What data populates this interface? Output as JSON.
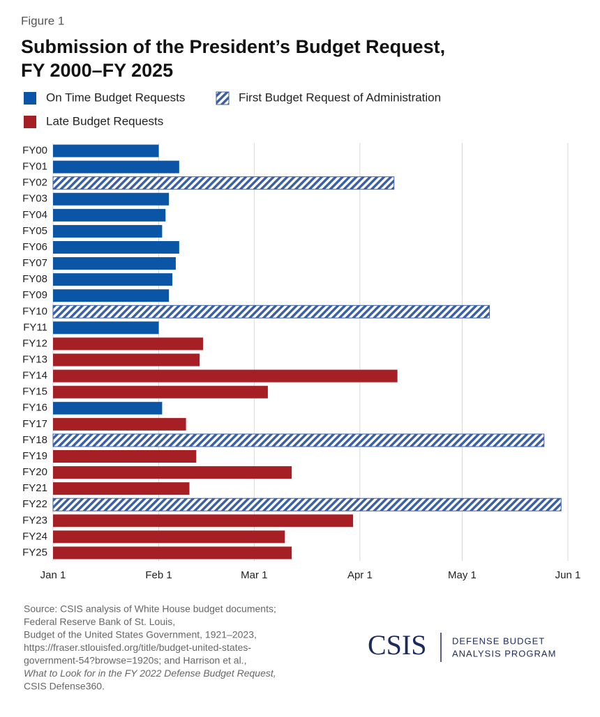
{
  "figure_label": "Figure 1",
  "chart_data": {
    "type": "hbar",
    "title": [
      "Submission of the President’s Budget Request,",
      "FY 2000–FY 2025"
    ],
    "categories": [
      "FY00",
      "FY01",
      "FY02",
      "FY03",
      "FY04",
      "FY05",
      "FY06",
      "FY07",
      "FY08",
      "FY09",
      "FY10",
      "FY11",
      "FY12",
      "FY13",
      "FY14",
      "FY15",
      "FY16",
      "FY17",
      "FY18",
      "FY19",
      "FY20",
      "FY21",
      "FY22",
      "FY23",
      "FY24",
      "FY25"
    ],
    "series": [
      {
        "name": "On Time Budget Requests",
        "color": "#0b55a6",
        "pattern": "solid",
        "values": [
          31,
          37,
          null,
          34,
          33,
          32,
          37,
          36,
          35,
          34,
          null,
          31,
          null,
          null,
          null,
          null,
          32,
          null,
          null,
          null,
          null,
          null,
          null,
          null,
          null,
          null
        ]
      },
      {
        "name": "First Budget Request of Administration",
        "color": "#3b5fa8",
        "pattern": "hatch",
        "values": [
          null,
          null,
          100,
          null,
          null,
          null,
          null,
          null,
          null,
          null,
          128,
          null,
          null,
          null,
          null,
          null,
          null,
          null,
          144,
          null,
          null,
          null,
          149,
          null,
          null,
          null
        ]
      },
      {
        "name": "Late Budget Requests",
        "color": "#a51f24",
        "pattern": "solid",
        "values": [
          null,
          null,
          null,
          null,
          null,
          null,
          null,
          null,
          null,
          null,
          null,
          null,
          44,
          43,
          101,
          63,
          null,
          39,
          null,
          42,
          70,
          40,
          null,
          88,
          68,
          70
        ]
      }
    ],
    "xlim": [
      0,
      151
    ],
    "xticks": [
      {
        "value": 0,
        "label": "Jan 1"
      },
      {
        "value": 31,
        "label": "Feb 1"
      },
      {
        "value": 59,
        "label": "Mar 1"
      },
      {
        "value": 90,
        "label": "Apr 1"
      },
      {
        "value": 120,
        "label": "May 1"
      },
      {
        "value": 151,
        "label": "Jun 1"
      }
    ],
    "grid": true
  },
  "source": [
    "Source: CSIS analysis of White House budget documents;",
    "Federal Reserve Bank of St. Louis,",
    "Budget of the United States Government, 1921–2023,",
    "https://fraser.stlouisfed.org/title/budget-united-states-",
    "government-54?browse=1920s; and Harrison et al.,",
    "What to Look for in the FY 2022 Defense Budget Request,",
    "CSIS Defense360."
  ],
  "logo": {
    "name": "CSIS",
    "program": [
      "DEFENSE BUDGET",
      "ANALYSIS PROGRAM"
    ]
  }
}
